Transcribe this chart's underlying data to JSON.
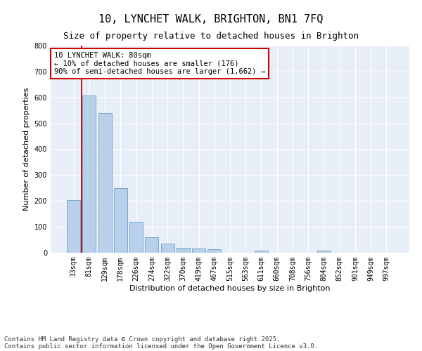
{
  "title": "10, LYNCHET WALK, BRIGHTON, BN1 7FQ",
  "subtitle": "Size of property relative to detached houses in Brighton",
  "xlabel": "Distribution of detached houses by size in Brighton",
  "ylabel": "Number of detached properties",
  "categories": [
    "33sqm",
    "81sqm",
    "129sqm",
    "178sqm",
    "226sqm",
    "274sqm",
    "322sqm",
    "370sqm",
    "419sqm",
    "467sqm",
    "515sqm",
    "563sqm",
    "611sqm",
    "660sqm",
    "708sqm",
    "756sqm",
    "804sqm",
    "852sqm",
    "901sqm",
    "949sqm",
    "997sqm"
  ],
  "bar_heights": [
    203,
    608,
    540,
    250,
    120,
    60,
    35,
    20,
    17,
    13,
    0,
    0,
    7,
    0,
    0,
    0,
    8,
    0,
    0,
    0,
    0
  ],
  "bar_color": "#b8d0ea",
  "bar_edge_color": "#6a9fc8",
  "vline_color": "#cc0000",
  "annotation_text": "10 LYNCHET WALK: 80sqm\n← 10% of detached houses are smaller (176)\n90% of semi-detached houses are larger (1,662) →",
  "annotation_box_color": "#ffffff",
  "annotation_box_edge_color": "#cc0000",
  "ylim": [
    0,
    800
  ],
  "yticks": [
    0,
    100,
    200,
    300,
    400,
    500,
    600,
    700,
    800
  ],
  "background_color": "#e8eef8",
  "footer_line1": "Contains HM Land Registry data © Crown copyright and database right 2025.",
  "footer_line2": "Contains public sector information licensed under the Open Government Licence v3.0.",
  "title_fontsize": 11,
  "subtitle_fontsize": 9,
  "axis_label_fontsize": 8,
  "tick_fontsize": 7,
  "annotation_fontsize": 7.5,
  "footer_fontsize": 6.5
}
